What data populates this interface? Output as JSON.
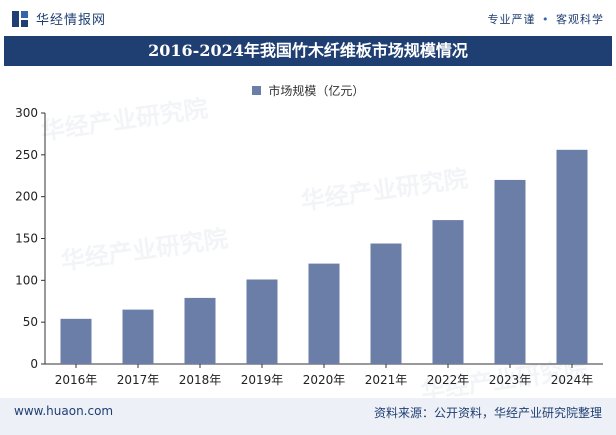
{
  "header": {
    "logo_text": "华经情报网",
    "tagline_left": "专业严谨",
    "tagline_right": "客观科学"
  },
  "title": "2016-2024年我国竹木纤维板市场规模情况",
  "footer": {
    "url": "www.huaon.com",
    "source": "资料来源：公开资料，华经产业研究院整理"
  },
  "watermark_text": "华经产业研究院",
  "colors": {
    "bar": "#6a7ea8",
    "title_bg": "#1f3f73",
    "footer_bg": "#edf0f6"
  },
  "chart_data": {
    "type": "bar",
    "categories": [
      "2016年",
      "2017年",
      "2018年",
      "2019年",
      "2020年",
      "2021年",
      "2022年",
      "2023年",
      "2024年"
    ],
    "series": [
      {
        "name": "市场规模（亿元）",
        "values": [
          54,
          65,
          79,
          101,
          120,
          144,
          172,
          220,
          256
        ]
      }
    ],
    "ylim": [
      0,
      300
    ],
    "yticks": [
      0,
      50,
      100,
      150,
      200,
      250,
      300
    ],
    "legend_position": "top-center",
    "grid": false
  }
}
